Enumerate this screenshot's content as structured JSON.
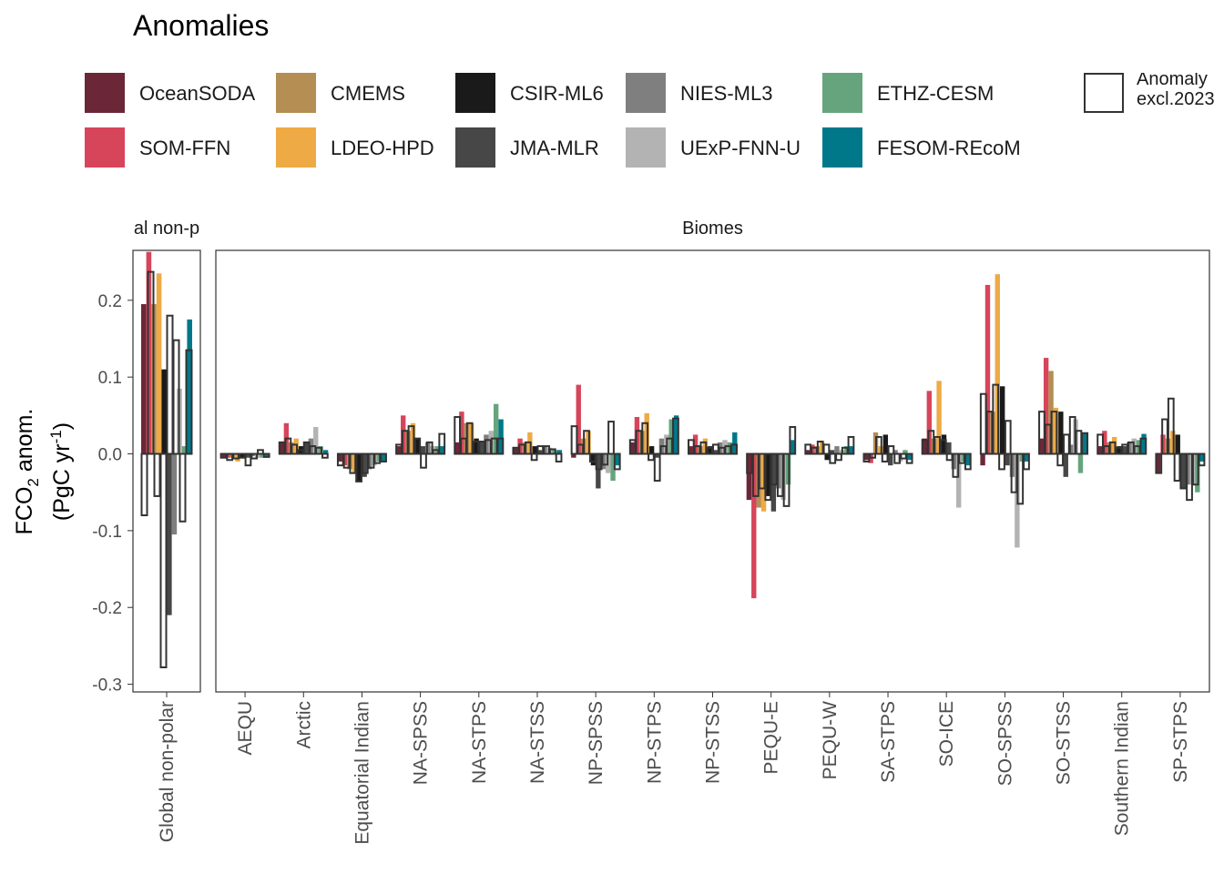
{
  "legend": {
    "title": "Anomalies",
    "items": [
      {
        "name": "OceanSODA",
        "color": "#6B2737"
      },
      {
        "name": "SOM-FFN",
        "color": "#D6455A"
      },
      {
        "name": "CMEMS",
        "color": "#B48E52"
      },
      {
        "name": "LDEO-HPD",
        "color": "#EEAA45"
      },
      {
        "name": "CSIR-ML6",
        "color": "#1A1A1A"
      },
      {
        "name": "JMA-MLR",
        "color": "#474747"
      },
      {
        "name": "NIES-ML3",
        "color": "#7F7F7F"
      },
      {
        "name": "UExP-FNN-U",
        "color": "#B3B3B3"
      },
      {
        "name": "ETHZ-CESM",
        "color": "#66A47D"
      },
      {
        "name": "FESOM-REcoM",
        "color": "#00788A"
      }
    ],
    "anomaly_label_line1": "Anomaly",
    "anomaly_label_line2": "excl.2023"
  },
  "chart_data": {
    "type": "bar",
    "ylabel_main": "FCO",
    "ylabel_sub": "2",
    "ylabel_rest": " anom.",
    "ylabel_unit_pre": "(PgC yr",
    "ylabel_unit_sup": "-1",
    "ylabel_unit_post": ")",
    "ylim": [
      -0.31,
      0.265
    ],
    "yticks": [
      0.2,
      0.1,
      0.0,
      -0.1,
      -0.2,
      -0.3
    ],
    "ytick_labels": [
      "0.2",
      "0.1",
      "0.0",
      "-0.1",
      "-0.2",
      "-0.3"
    ],
    "grid": false,
    "legend_position": "top",
    "panels": [
      {
        "strip": "al non-p",
        "categories": [
          "Global non-polar"
        ],
        "values": [
          {
            "bars": [
              0.195,
              0.263,
              0.195,
              0.235,
              0.11,
              -0.21,
              -0.105,
              0.085,
              0.01,
              0.175
            ],
            "outline": [
              -0.08,
              0.237,
              -0.055,
              -0.278,
              0.18,
              0.148,
              -0.088,
              0.135
            ]
          }
        ]
      },
      {
        "strip": "Biomes",
        "categories": [
          "AEQU",
          "Arctic",
          "Equatorial Indian",
          "NA-SPSS",
          "NA-STPS",
          "NA-STSS",
          "NP-SPSS",
          "NP-STPS",
          "NP-STSS",
          "PEQU-E",
          "PEQU-W",
          "SA-STPS",
          "SO-ICE",
          "SO-SPSS",
          "SO-STSS",
          "Southern Indian",
          "SP-STPS"
        ],
        "values": [
          {
            "bars": [
              -0.005,
              -0.005,
              -0.005,
              -0.01,
              -0.005,
              -0.005,
              -0.003,
              -0.005,
              -0.005,
              -0.004
            ],
            "outline": [
              -0.005,
              -0.008,
              -0.006,
              -0.005,
              -0.015,
              -0.006,
              0.005,
              -0.004
            ]
          },
          {
            "bars": [
              0.015,
              0.04,
              0.015,
              0.02,
              0.01,
              0.015,
              0.02,
              0.035,
              0.01,
              0.005
            ],
            "outline": [
              0.015,
              0.02,
              0.012,
              0.005,
              0.015,
              0.01,
              0.008,
              -0.005
            ]
          },
          {
            "bars": [
              -0.01,
              -0.015,
              -0.02,
              -0.025,
              -0.035,
              -0.03,
              -0.02,
              -0.015,
              -0.01,
              -0.01
            ],
            "outline": [
              -0.015,
              -0.018,
              -0.025,
              -0.036,
              -0.025,
              -0.018,
              -0.012,
              -0.01
            ]
          },
          {
            "bars": [
              0.01,
              0.05,
              0.03,
              0.04,
              0.02,
              0.01,
              0.015,
              0.01,
              0.01,
              0.01
            ],
            "outline": [
              0.012,
              0.03,
              0.036,
              0.02,
              -0.018,
              0.015,
              0.005,
              0.026
            ]
          },
          {
            "bars": [
              0.015,
              0.055,
              0.04,
              0.04,
              0.02,
              0.015,
              0.025,
              0.03,
              0.065,
              0.045
            ],
            "outline": [
              0.048,
              0.02,
              0.04,
              0.016,
              0.016,
              0.018,
              0.02,
              0.02
            ]
          },
          {
            "bars": [
              0.008,
              0.02,
              0.015,
              0.028,
              0.01,
              0.005,
              0.01,
              0.008,
              0.005,
              0.005
            ],
            "outline": [
              0.008,
              0.012,
              0.015,
              -0.008,
              0.01,
              0.01,
              0.006,
              -0.01
            ]
          },
          {
            "bars": [
              -0.005,
              0.09,
              0.02,
              0.03,
              -0.015,
              -0.045,
              -0.02,
              -0.025,
              -0.035,
              -0.015
            ],
            "outline": [
              0.036,
              0.012,
              0.03,
              -0.01,
              -0.02,
              -0.014,
              0.042,
              -0.02
            ]
          },
          {
            "bars": [
              0.015,
              0.048,
              0.03,
              0.053,
              0.01,
              -0.005,
              0.02,
              0.025,
              0.045,
              0.05
            ],
            "outline": [
              0.018,
              0.03,
              0.04,
              -0.008,
              -0.035,
              0.01,
              0.02,
              0.046
            ]
          },
          {
            "bars": [
              0.01,
              0.025,
              0.01,
              0.02,
              0.01,
              0.005,
              0.015,
              0.018,
              0.015,
              0.028
            ],
            "outline": [
              0.018,
              0.01,
              0.015,
              0.008,
              0.012,
              0.008,
              0.01,
              0.012
            ]
          },
          {
            "bars": [
              -0.06,
              -0.188,
              -0.07,
              -0.075,
              -0.055,
              -0.075,
              -0.045,
              -0.06,
              -0.04,
              0.018
            ],
            "outline": [
              -0.025,
              -0.055,
              -0.045,
              -0.06,
              -0.04,
              -0.055,
              -0.068,
              0.035
            ]
          },
          {
            "bars": [
              0.005,
              0.012,
              0.01,
              0.015,
              -0.008,
              0.005,
              0.01,
              0.005,
              0.01,
              0.01
            ],
            "outline": [
              0.012,
              0.008,
              0.016,
              0.012,
              -0.012,
              -0.008,
              0.008,
              0.022
            ]
          },
          {
            "bars": [
              -0.008,
              -0.012,
              0.028,
              0.01,
              0.025,
              -0.015,
              0.005,
              -0.01,
              0.005,
              -0.008
            ],
            "outline": [
              -0.01,
              -0.005,
              0.022,
              -0.01,
              0.01,
              -0.012,
              -0.006,
              -0.012
            ]
          },
          {
            "bars": [
              0.02,
              0.082,
              0.02,
              0.095,
              0.025,
              0.015,
              -0.02,
              -0.07,
              -0.01,
              -0.015
            ],
            "outline": [
              0.018,
              0.03,
              0.022,
              0.018,
              -0.008,
              -0.03,
              -0.012,
              -0.02
            ]
          },
          {
            "bars": [
              -0.015,
              0.22,
              0.055,
              0.234,
              0.088,
              -0.015,
              -0.03,
              -0.122,
              -0.01,
              -0.01
            ],
            "outline": [
              0.078,
              0.055,
              0.09,
              -0.02,
              0.043,
              -0.05,
              -0.065,
              -0.02
            ]
          },
          {
            "bars": [
              0.02,
              0.125,
              0.108,
              0.06,
              0.055,
              -0.03,
              0.012,
              0.045,
              -0.025,
              0.027
            ],
            "outline": [
              0.055,
              0.038,
              0.055,
              -0.015,
              0.025,
              0.048,
              0.03,
              0.027
            ]
          },
          {
            "bars": [
              0.01,
              0.03,
              0.015,
              0.022,
              0.01,
              0.01,
              0.015,
              0.02,
              0.018,
              0.026
            ],
            "outline": [
              0.025,
              0.01,
              0.015,
              0.008,
              0.012,
              0.015,
              0.01,
              0.02
            ]
          },
          {
            "bars": [
              -0.025,
              0.025,
              0.02,
              0.03,
              0.025,
              -0.045,
              -0.04,
              -0.04,
              -0.05,
              -0.01
            ],
            "outline": [
              -0.025,
              0.045,
              0.072,
              -0.035,
              -0.045,
              -0.06,
              -0.04,
              -0.015
            ]
          }
        ]
      }
    ]
  }
}
